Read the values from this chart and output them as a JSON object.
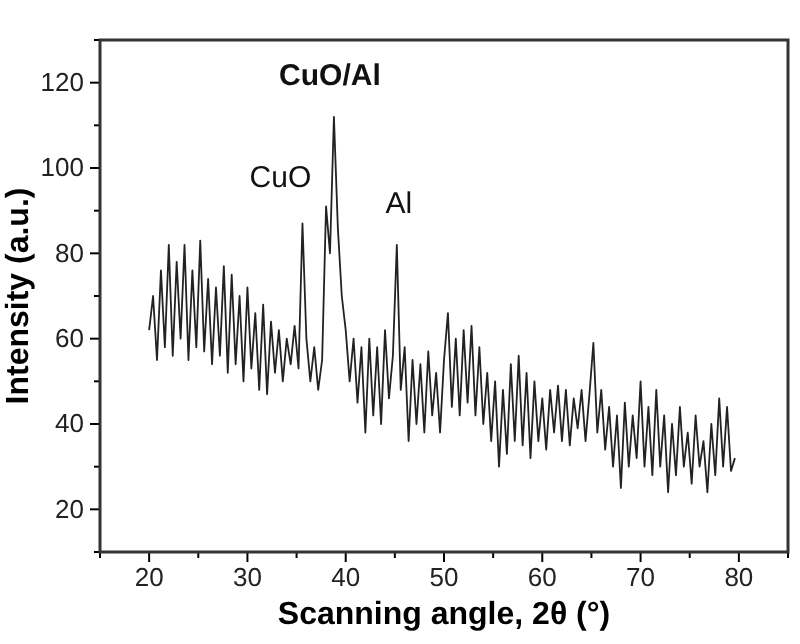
{
  "chart_data": {
    "type": "line",
    "xlabel": "Scanning angle, 2θ (°)",
    "ylabel": "Intensity (a.u.)",
    "xlim": [
      15,
      85
    ],
    "ylim": [
      10,
      130
    ],
    "xticks": [
      {
        "value": 15,
        "label": null
      },
      20,
      {
        "value": 25,
        "label": null
      },
      30,
      {
        "value": 35,
        "label": null
      },
      40,
      {
        "value": 45,
        "label": null
      },
      50,
      {
        "value": 55,
        "label": null
      },
      60,
      {
        "value": 65,
        "label": null
      },
      70,
      {
        "value": 75,
        "label": null
      },
      80,
      {
        "value": 85,
        "label": null
      }
    ],
    "yticks": [
      {
        "value": 10,
        "label": null
      },
      20,
      {
        "value": 30,
        "label": null
      },
      40,
      {
        "value": 50,
        "label": null
      },
      60,
      {
        "value": 70,
        "label": null
      },
      80,
      {
        "value": 90,
        "label": null
      },
      100,
      {
        "value": 110,
        "label": null
      },
      120,
      {
        "value": 130,
        "label": null
      }
    ],
    "grid": false,
    "marker": "none",
    "line_style": "solid",
    "annotations": [
      {
        "text": "CuO/Al",
        "x": 38.8,
        "y": 112
      },
      {
        "text": "CuO",
        "x": 35.6,
        "y": 87
      },
      {
        "text": "Al",
        "x": 45.2,
        "y": 82
      }
    ],
    "series": [
      {
        "color": "#222222",
        "x": [
          20.0,
          20.4,
          20.8,
          21.2,
          21.6,
          22.0,
          22.4,
          22.8,
          23.2,
          23.6,
          24.0,
          24.4,
          24.8,
          25.2,
          25.6,
          26.0,
          26.4,
          26.8,
          27.2,
          27.6,
          28.0,
          28.4,
          28.8,
          29.2,
          29.6,
          30.0,
          30.4,
          30.8,
          31.2,
          31.6,
          32.0,
          32.4,
          32.8,
          33.2,
          33.6,
          34.0,
          34.4,
          34.8,
          35.2,
          35.6,
          36.0,
          36.4,
          36.8,
          37.2,
          37.6,
          38.0,
          38.4,
          38.8,
          39.2,
          39.6,
          40.0,
          40.4,
          40.8,
          41.2,
          41.6,
          42.0,
          42.4,
          42.8,
          43.2,
          43.6,
          44.0,
          44.4,
          44.8,
          45.2,
          45.6,
          46.0,
          46.4,
          46.8,
          47.2,
          47.6,
          48.0,
          48.4,
          48.8,
          49.2,
          49.6,
          50.0,
          50.4,
          50.8,
          51.2,
          51.6,
          52.0,
          52.4,
          52.8,
          53.2,
          53.6,
          54.0,
          54.4,
          54.8,
          55.2,
          55.6,
          56.0,
          56.4,
          56.8,
          57.2,
          57.6,
          58.0,
          58.4,
          58.8,
          59.2,
          59.6,
          60.0,
          60.4,
          60.8,
          61.2,
          61.6,
          62.0,
          62.4,
          62.8,
          63.2,
          63.6,
          64.0,
          64.4,
          64.8,
          65.2,
          65.6,
          66.0,
          66.4,
          66.8,
          67.2,
          67.6,
          68.0,
          68.4,
          68.8,
          69.2,
          69.6,
          70.0,
          70.4,
          70.8,
          71.2,
          71.6,
          72.0,
          72.4,
          72.8,
          73.2,
          73.6,
          74.0,
          74.4,
          74.8,
          75.2,
          75.6,
          76.0,
          76.4,
          76.8,
          77.2,
          77.6,
          78.0,
          78.4,
          78.8,
          79.2,
          79.6
        ],
        "values": [
          62,
          70,
          55,
          76,
          58,
          82,
          56,
          78,
          60,
          82,
          55,
          76,
          58,
          83,
          57,
          74,
          54,
          72,
          56,
          77,
          52,
          75,
          54,
          70,
          50,
          72,
          53,
          66,
          48,
          68,
          47,
          64,
          52,
          62,
          50,
          60,
          54,
          63,
          53,
          87,
          60,
          50,
          58,
          48,
          55,
          91,
          80,
          112,
          86,
          70,
          62,
          50,
          60,
          45,
          58,
          38,
          60,
          42,
          58,
          40,
          62,
          46,
          56,
          82,
          48,
          58,
          36,
          55,
          40,
          54,
          38,
          57,
          42,
          52,
          38,
          55,
          66,
          44,
          60,
          42,
          62,
          45,
          63,
          42,
          58,
          40,
          52,
          36,
          50,
          30,
          48,
          33,
          54,
          36,
          56,
          35,
          52,
          32,
          50,
          36,
          46,
          34,
          48,
          38,
          49,
          36,
          48,
          35,
          46,
          39,
          48,
          36,
          47,
          59,
          38,
          48,
          34,
          44,
          30,
          42,
          25,
          45,
          30,
          42,
          32,
          50,
          30,
          44,
          28,
          48,
          30,
          42,
          24,
          40,
          28,
          44,
          30,
          38,
          26,
          42,
          30,
          36,
          24,
          40,
          28,
          46,
          30,
          44,
          29,
          32
        ]
      }
    ]
  }
}
